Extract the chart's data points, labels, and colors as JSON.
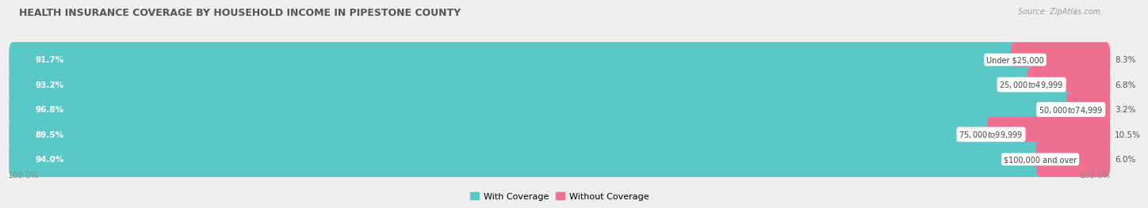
{
  "title": "HEALTH INSURANCE COVERAGE BY HOUSEHOLD INCOME IN PIPESTONE COUNTY",
  "source": "Source: ZipAtlas.com",
  "categories": [
    "Under $25,000",
    "$25,000 to $49,999",
    "$50,000 to $74,999",
    "$75,000 to $99,999",
    "$100,000 and over"
  ],
  "with_coverage": [
    91.7,
    93.2,
    96.8,
    89.5,
    94.0
  ],
  "without_coverage": [
    8.3,
    6.8,
    3.2,
    10.5,
    6.0
  ],
  "color_with": "#5bc8c8",
  "color_without": "#f07090",
  "bg_color": "#efefef",
  "bar_bg": "#d8d8d8",
  "legend_with": "With Coverage",
  "legend_without": "Without Coverage",
  "figsize": [
    14.06,
    2.69
  ],
  "dpi": 100,
  "bar_height": 0.62,
  "bar_spacing": 1.0
}
